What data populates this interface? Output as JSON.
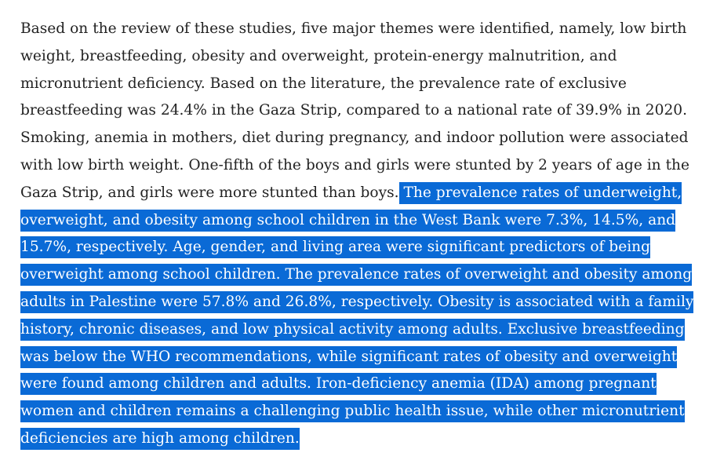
{
  "paragraph": {
    "lines": [
      {
        "plain": "Based on the review of these studies, five major themes were identified, namely, low birth",
        "selected": ""
      },
      {
        "plain": "weight, breastfeeding, obesity and overweight, protein-energy malnutrition, and",
        "selected": ""
      },
      {
        "plain": "micronutrient deficiency. Based on the literature, the prevalence rate of exclusive",
        "selected": ""
      },
      {
        "plain": "breastfeeding was 24.4% in the Gaza Strip, compared to a national rate of 39.9% in 2020.",
        "selected": ""
      },
      {
        "plain": "Smoking, anemia in mothers, diet during pregnancy, and indoor pollution were associated",
        "selected": ""
      },
      {
        "plain": "with low birth weight. One-fifth of the boys and girls were stunted by 2 years of age in the",
        "selected": ""
      },
      {
        "plain": "Gaza Strip, and girls were more stunted than boys.",
        "selected": " The prevalence rates of underweight,"
      },
      {
        "plain": "",
        "selected": "overweight, and obesity among school children in the West Bank were 7.3%, 14.5%, and"
      },
      {
        "plain": "",
        "selected": "15.7%, respectively. Age, gender, and living area were significant predictors of being"
      },
      {
        "plain": "",
        "selected": "overweight among school children. The prevalence rates of overweight and obesity among"
      },
      {
        "plain": "",
        "selected": "adults in Palestine were 57.8% and 26.8%, respectively. Obesity is associated with a family"
      },
      {
        "plain": "",
        "selected": "history, chronic diseases, and low physical activity among adults. Exclusive breastfeeding"
      },
      {
        "plain": "",
        "selected": "was below the WHO recommendations, while significant rates of obesity and overweight"
      },
      {
        "plain": "",
        "selected": "were found among children and adults. Iron-deficiency anemia (IDA) among pregnant"
      },
      {
        "plain": "",
        "selected": "women and children remains a challenging public health issue, while other micronutrient"
      },
      {
        "plain": "",
        "selected": "deficiencies are high among children."
      }
    ]
  },
  "colors": {
    "text": "#222222",
    "selection_background": "#0a6ad6",
    "selection_text": "#ffffff",
    "page_background": "#ffffff"
  }
}
